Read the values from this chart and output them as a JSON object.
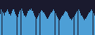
{
  "bar_color": "#4d9fd6",
  "background_color": "#1a1a2e",
  "n_bars": 95,
  "values": [
    82,
    88,
    85,
    83,
    80,
    84,
    86,
    88,
    85,
    82,
    80,
    83,
    86,
    88,
    85,
    82,
    80,
    78,
    82,
    85,
    87,
    89,
    86,
    83,
    80,
    78,
    80,
    83,
    86,
    88,
    87,
    89,
    86,
    83,
    80,
    78,
    76,
    78,
    80,
    83,
    85,
    87,
    86,
    84,
    82,
    80,
    78,
    76,
    78,
    80,
    82,
    84,
    86,
    88,
    86,
    83,
    80,
    78,
    76,
    74,
    76,
    78,
    80,
    82,
    84,
    86,
    85,
    83,
    80,
    78,
    76,
    74,
    76,
    78,
    80,
    82,
    84,
    86,
    88,
    86,
    83,
    80,
    78,
    76,
    74,
    76,
    78,
    80,
    82,
    84,
    86,
    88,
    86,
    83,
    80
  ],
  "ylim": [
    55,
    100
  ],
  "figsize": [
    1.2,
    0.45
  ],
  "dpi": 100
}
